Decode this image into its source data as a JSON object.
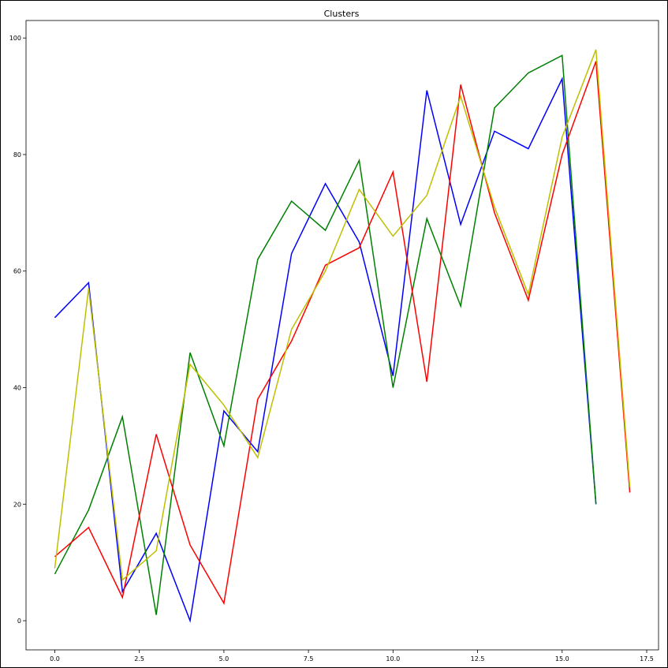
{
  "chart_data": {
    "type": "line",
    "title": "Clusters",
    "xlabel": "",
    "ylabel": "",
    "xlim": [
      -0.85,
      17.85
    ],
    "ylim": [
      -5,
      103
    ],
    "xticks": [
      0.0,
      2.5,
      5.0,
      7.5,
      10.0,
      12.5,
      15.0,
      17.5
    ],
    "xtick_labels": [
      "0.0",
      "2.5",
      "5.0",
      "7.5",
      "10.0",
      "12.5",
      "15.0",
      "17.5"
    ],
    "yticks": [
      0,
      20,
      40,
      60,
      80,
      100
    ],
    "ytick_labels": [
      "0",
      "20",
      "40",
      "60",
      "80",
      "100"
    ],
    "grid": false,
    "legend": "none",
    "series": [
      {
        "color": "#0000ff",
        "x": [
          0,
          1,
          2,
          3,
          4,
          5,
          6,
          7,
          8,
          9,
          10,
          11,
          12,
          13,
          14,
          15,
          16
        ],
        "values": [
          52,
          58,
          5,
          15,
          0,
          36,
          29,
          63,
          75,
          65,
          42,
          91,
          68,
          84,
          81,
          93,
          20
        ]
      },
      {
        "color": "#008000",
        "x": [
          0,
          1,
          2,
          3,
          4,
          5,
          6,
          7,
          8,
          9,
          10,
          11,
          12,
          13,
          14,
          15,
          16
        ],
        "values": [
          8,
          19,
          35,
          1,
          46,
          30,
          62,
          72,
          67,
          79,
          40,
          69,
          54,
          88,
          94,
          97,
          20
        ]
      },
      {
        "color": "#ff0000",
        "x": [
          0,
          1,
          2,
          3,
          4,
          5,
          6,
          7,
          8,
          9,
          10,
          11,
          12,
          13,
          14,
          15,
          16,
          17
        ],
        "values": [
          11,
          16,
          4,
          32,
          13,
          3,
          38,
          48,
          61,
          64,
          77,
          41,
          92,
          70,
          55,
          80,
          96,
          22
        ]
      },
      {
        "color": "#bfbf00",
        "x": [
          0,
          1,
          2,
          3,
          4,
          5,
          6,
          7,
          8,
          9,
          10,
          11,
          12,
          13,
          14,
          15,
          16,
          17
        ],
        "values": [
          9,
          57,
          7,
          12,
          44,
          37,
          28,
          50,
          60,
          74,
          66,
          73,
          90,
          71,
          56,
          83,
          98,
          23
        ]
      }
    ]
  }
}
